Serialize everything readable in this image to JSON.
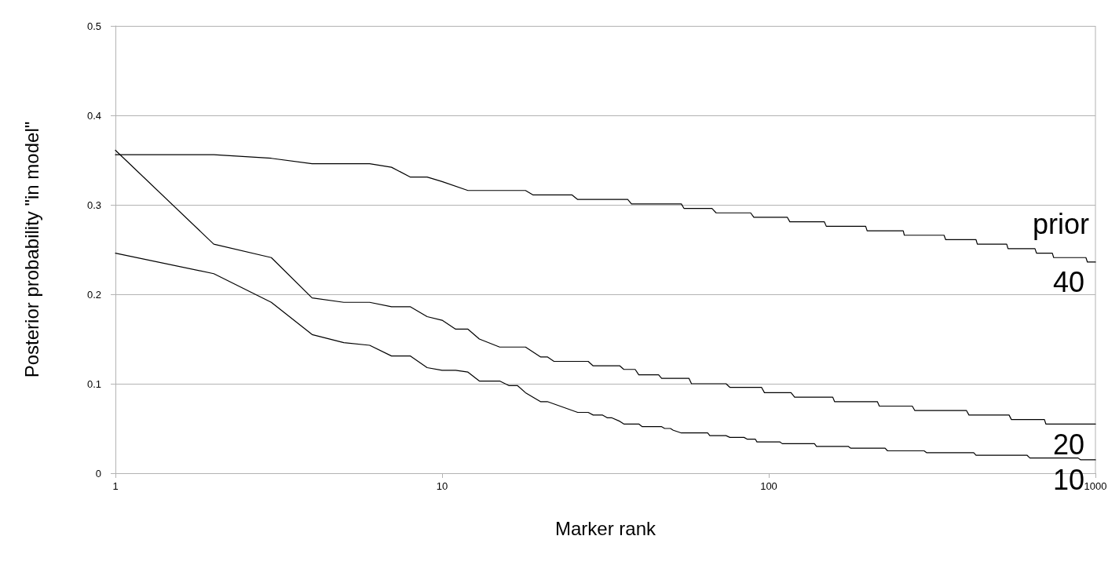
{
  "chart_data": {
    "type": "line",
    "xlabel": "Marker rank",
    "ylabel": "Posterior probability \"in model\"",
    "annotations": [
      "prior"
    ],
    "series": [
      {
        "name": "40",
        "color": "#000000",
        "x": [
          1,
          2,
          3,
          4,
          6,
          7,
          8,
          9,
          10,
          12,
          18,
          19,
          25,
          26,
          37,
          38,
          54,
          55,
          67,
          69,
          88,
          90,
          114,
          116,
          148,
          150,
          198,
          200,
          258,
          260,
          344,
          348,
          431,
          435,
          535,
          540,
          653,
          660,
          738,
          745,
          935,
          945,
          1000
        ],
        "values": [
          0.356,
          0.356,
          0.352,
          0.346,
          0.346,
          0.342,
          0.331,
          0.331,
          0.326,
          0.316,
          0.316,
          0.311,
          0.311,
          0.306,
          0.306,
          0.301,
          0.301,
          0.296,
          0.296,
          0.291,
          0.291,
          0.286,
          0.286,
          0.281,
          0.281,
          0.276,
          0.276,
          0.271,
          0.271,
          0.266,
          0.266,
          0.261,
          0.261,
          0.256,
          0.256,
          0.251,
          0.251,
          0.246,
          0.246,
          0.241,
          0.241,
          0.236,
          0.236
        ]
      },
      {
        "name": "20",
        "color": "#000000",
        "x": [
          1,
          2,
          3,
          4,
          5,
          6,
          7,
          8,
          9,
          10,
          11,
          12,
          13,
          15,
          18,
          20,
          21,
          22,
          28,
          29,
          35,
          36,
          39,
          40,
          46,
          47,
          57,
          58,
          74,
          76,
          95,
          97,
          117,
          120,
          157,
          159,
          215,
          218,
          275,
          280,
          403,
          410,
          544,
          553,
          698,
          705,
          1000
        ],
        "values": [
          0.361,
          0.256,
          0.241,
          0.196,
          0.191,
          0.191,
          0.186,
          0.186,
          0.175,
          0.171,
          0.161,
          0.161,
          0.15,
          0.141,
          0.141,
          0.13,
          0.13,
          0.125,
          0.125,
          0.12,
          0.12,
          0.116,
          0.116,
          0.11,
          0.11,
          0.106,
          0.106,
          0.1,
          0.1,
          0.096,
          0.096,
          0.09,
          0.09,
          0.085,
          0.085,
          0.08,
          0.08,
          0.075,
          0.075,
          0.07,
          0.07,
          0.065,
          0.065,
          0.06,
          0.06,
          0.055,
          0.055
        ]
      },
      {
        "name": "10",
        "color": "#000000",
        "x": [
          1,
          2,
          3,
          4,
          5,
          6,
          7,
          8,
          9,
          10,
          11,
          12,
          13,
          15,
          16,
          17,
          18,
          20,
          21,
          26,
          28,
          29,
          31,
          32,
          33,
          35,
          36,
          40,
          41,
          47,
          48,
          50,
          51,
          54,
          65,
          66,
          74,
          76,
          84,
          86,
          91,
          92,
          108,
          110,
          138,
          140,
          175,
          178,
          227,
          231,
          299,
          304,
          424,
          431,
          618,
          630,
          885,
          901,
          1000
        ],
        "values": [
          0.246,
          0.223,
          0.191,
          0.155,
          0.146,
          0.143,
          0.131,
          0.131,
          0.118,
          0.115,
          0.115,
          0.113,
          0.103,
          0.103,
          0.098,
          0.098,
          0.09,
          0.08,
          0.08,
          0.068,
          0.068,
          0.065,
          0.065,
          0.062,
          0.062,
          0.058,
          0.055,
          0.055,
          0.052,
          0.052,
          0.05,
          0.05,
          0.048,
          0.045,
          0.045,
          0.042,
          0.042,
          0.04,
          0.04,
          0.038,
          0.038,
          0.035,
          0.035,
          0.033,
          0.033,
          0.03,
          0.03,
          0.028,
          0.028,
          0.025,
          0.025,
          0.023,
          0.023,
          0.02,
          0.02,
          0.017,
          0.017,
          0.015,
          0.015
        ]
      }
    ],
    "xlim": [
      1,
      1000
    ],
    "xticks": [
      1,
      10,
      100,
      1000
    ],
    "log": "x",
    "ylim": [
      0,
      0.5
    ],
    "yticks": [
      0,
      0.1,
      0.2,
      0.3,
      0.4,
      0.5
    ],
    "grid": "y",
    "legend": false,
    "marker": "none",
    "line_style": "solid"
  }
}
